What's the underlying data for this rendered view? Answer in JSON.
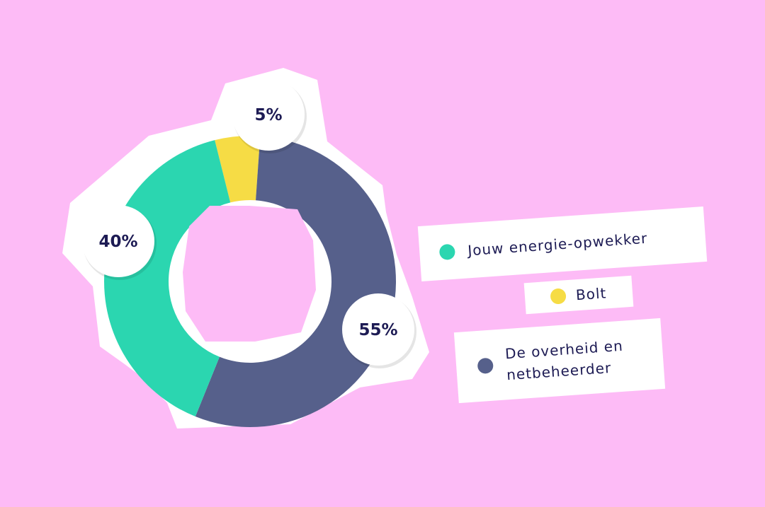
{
  "chart_data": {
    "type": "pie",
    "donut": true,
    "categories": [
      "Jouw energie-opwekker",
      "Bolt",
      "De overheid en netbeheerder"
    ],
    "values": [
      40,
      5,
      55
    ],
    "value_labels": [
      "40%",
      "5%",
      "55%"
    ],
    "colors": [
      "#2bd6b0",
      "#f6dc45",
      "#56608b"
    ],
    "title": "",
    "legend_position": "right"
  },
  "legend": {
    "items": [
      {
        "lines": [
          "Jouw energie-opwekker"
        ],
        "color": "#2bd6b0"
      },
      {
        "lines": [
          "Bolt"
        ],
        "color": "#f6dc45"
      },
      {
        "lines": [
          "De overheid en",
          "netbeheerder"
        ],
        "color": "#56608b"
      }
    ]
  },
  "colors": {
    "background": "#fdbbf6",
    "card": "#ffffff",
    "text": "#1d1b54"
  }
}
